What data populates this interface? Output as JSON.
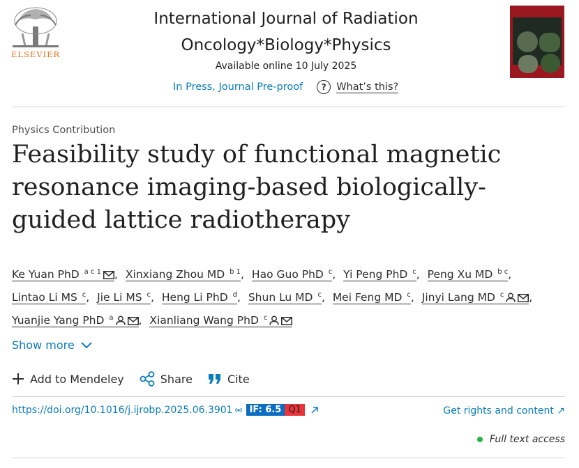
{
  "header": {
    "publisher": "ELSEVIER",
    "journal_title_line1": "International Journal of Radiation",
    "journal_title_line2": "Oncology*Biology*Physics",
    "available": "Available online 10 July 2025",
    "in_press": "In Press, Journal Pre-proof",
    "help_glyph": "?",
    "whats_this": "What’s this?"
  },
  "article": {
    "type": "Physics Contribution",
    "title": "Feasibility study of functional magnetic resonance imaging-based biologically-guided lattice radiotherapy"
  },
  "authors": [
    {
      "name": "Ke Yuan PhD",
      "sup": "a c 1",
      "icons": [
        "email"
      ]
    },
    {
      "name": "Xinxiang Zhou MD",
      "sup": "b 1",
      "icons": []
    },
    {
      "name": "Hao Guo PhD",
      "sup": "c",
      "icons": []
    },
    {
      "name": "Yi Peng PhD",
      "sup": "c",
      "icons": []
    },
    {
      "name": "Peng Xu MD",
      "sup": "b c",
      "icons": []
    },
    {
      "name": "Lintao Li MS",
      "sup": "c",
      "icons": []
    },
    {
      "name": "Jie Li MS",
      "sup": "c",
      "icons": []
    },
    {
      "name": "Heng Li PhD",
      "sup": "d",
      "icons": []
    },
    {
      "name": "Shun Lu MD",
      "sup": "c",
      "icons": []
    },
    {
      "name": "Mei Feng MD",
      "sup": "c",
      "icons": []
    },
    {
      "name": "Jinyi Lang MD",
      "sup": "c",
      "icons": [
        "person",
        "email"
      ]
    },
    {
      "name": "Yuanjie Yang PhD",
      "sup": "a",
      "icons": [
        "person",
        "email"
      ]
    },
    {
      "name": "Xianliang Wang PhD",
      "sup": "c",
      "icons": [
        "person",
        "email"
      ]
    }
  ],
  "show_more": "Show more",
  "actions": {
    "mendeley": "Add to Mendeley",
    "share": "Share",
    "cite": "Cite"
  },
  "doi": {
    "url": "https://doi.org/10.1016/j.ijrobp.2025.06.3901",
    "impact_factor": "IF: 6.5",
    "quartile": "Q1"
  },
  "rights": "Get rights and content ↗",
  "access": "Full text access",
  "colors": {
    "link": "#0c7dbb",
    "elsevier_orange": "#e9711c",
    "if_badge": "#0c6dc1",
    "q_badge": "#e8343b",
    "access_dot": "#2bb34a"
  }
}
